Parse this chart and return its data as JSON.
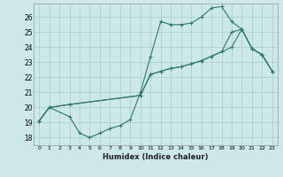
{
  "xlabel": "Humidex (Indice chaleur)",
  "xlim": [
    -0.5,
    23.5
  ],
  "ylim": [
    17.5,
    26.9
  ],
  "yticks": [
    18,
    19,
    20,
    21,
    22,
    23,
    24,
    25,
    26
  ],
  "xticks": [
    0,
    1,
    2,
    3,
    4,
    5,
    6,
    7,
    8,
    9,
    10,
    11,
    12,
    13,
    14,
    15,
    16,
    17,
    18,
    19,
    20,
    21,
    22,
    23
  ],
  "bg_color": "#cce8e8",
  "grid_color": "#aacccc",
  "line_color": "#2d7a6a",
  "line1_x": [
    0,
    1,
    3,
    4,
    5,
    6,
    7,
    8,
    9,
    10,
    11,
    12,
    13,
    14,
    15,
    16,
    17,
    18,
    19,
    20,
    21,
    22,
    23
  ],
  "line1_y": [
    19.1,
    20.0,
    19.4,
    18.3,
    18.0,
    18.3,
    18.6,
    18.8,
    19.2,
    21.0,
    23.4,
    25.7,
    25.5,
    25.5,
    25.6,
    26.0,
    26.6,
    26.7,
    25.7,
    25.2,
    23.9,
    23.5,
    22.4
  ],
  "line2_x": [
    0,
    1,
    3,
    10,
    11,
    12,
    13,
    14,
    15,
    16,
    17,
    18,
    19,
    20,
    21,
    22,
    23
  ],
  "line2_y": [
    19.1,
    20.0,
    20.2,
    20.8,
    22.2,
    22.4,
    22.6,
    22.7,
    22.9,
    23.1,
    23.4,
    23.7,
    25.0,
    25.2,
    23.9,
    23.5,
    22.4
  ],
  "line3_x": [
    0,
    1,
    3,
    10,
    11,
    12,
    13,
    14,
    15,
    16,
    17,
    18,
    19,
    20,
    21,
    22,
    23
  ],
  "line3_y": [
    19.1,
    20.0,
    20.2,
    20.8,
    22.2,
    22.4,
    22.6,
    22.7,
    22.9,
    23.1,
    23.4,
    23.7,
    24.0,
    25.2,
    23.9,
    23.5,
    22.4
  ]
}
